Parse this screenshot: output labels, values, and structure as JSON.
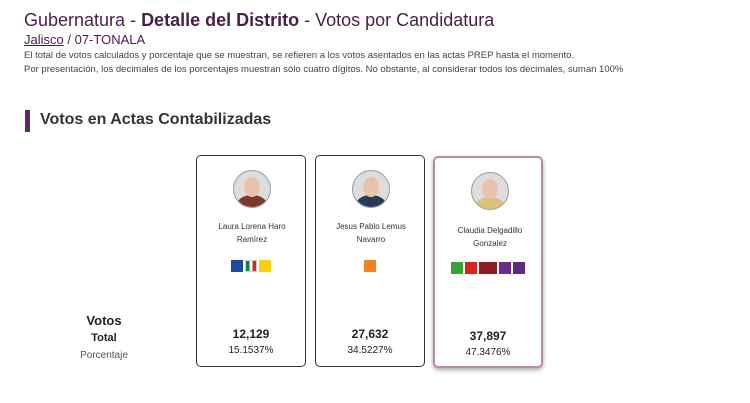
{
  "header": {
    "title_prefix": "Gubernatura - ",
    "title_main": "Detalle del Distrito",
    "title_suffix": " - Votos por Candidatura",
    "state": "Jalisco",
    "district": " / 07-TONALA",
    "notes": [
      "El total de votos calculados y porcentaje que se muestran, se refieren a los votos asentados en las actas PREP hasta el momento.",
      "Por presentación, los decimales de los porcentajes muestran sólo cuatro dígitos. No obstante, al considerar todos los decimales, suman 100%"
    ]
  },
  "section": {
    "title": "Votos en Actas Contabilizadas"
  },
  "row_labels": {
    "votes": "Votos",
    "total": "Total",
    "percentage": "Porcentaje"
  },
  "candidates": [
    {
      "name": "Laura Lorena Haro Ramírez",
      "votes": "12,129",
      "percentage": "15.1537%"
    },
    {
      "name": "Jesus Pablo Lemus Navarro",
      "votes": "27,632",
      "percentage": "34.5227%"
    },
    {
      "name": "Claudia Delgadillo Gonzalez",
      "votes": "37,897",
      "percentage": "47.3476%"
    }
  ]
}
